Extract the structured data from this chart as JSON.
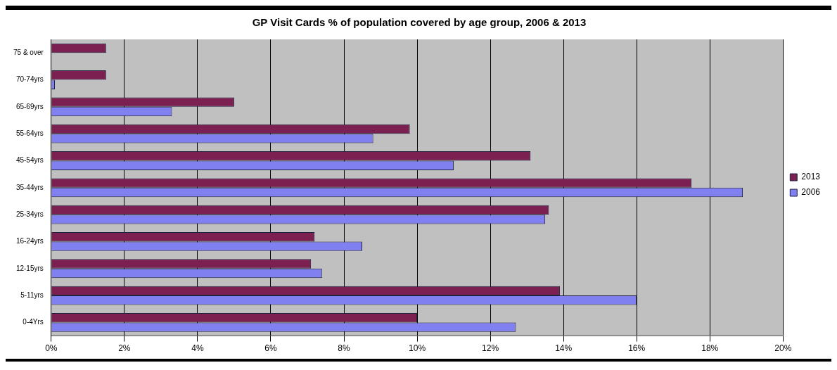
{
  "chart_data": {
    "type": "bar",
    "orientation": "horizontal",
    "title": "GP Visit Cards % of population covered by age group, 2006 & 2013",
    "categories": [
      "75 & over",
      "70-74yrs",
      "65-69yrs",
      "55-64yrs",
      "45-54yrs",
      "35-44yrs",
      "25-34yrs",
      "16-24yrs",
      "12-15yrs",
      "5-11yrs",
      "0-4Yrs"
    ],
    "series": [
      {
        "name": "2013",
        "color": "#7b2050",
        "values": [
          1.5,
          1.5,
          5,
          9.8,
          13.1,
          17.5,
          13.6,
          7.2,
          7.1,
          13.9,
          10
        ]
      },
      {
        "name": "2006",
        "color": "#8080f0",
        "values": [
          0,
          0.1,
          3.3,
          8.8,
          11,
          18.9,
          13.5,
          8.5,
          7.4,
          16,
          12.7
        ]
      }
    ],
    "xlim": [
      0,
      20
    ],
    "xticks": [
      {
        "value": 0,
        "label": "0%"
      },
      {
        "value": 2,
        "label": "2%"
      },
      {
        "value": 4,
        "label": "4%"
      },
      {
        "value": 6,
        "label": "6%"
      },
      {
        "value": 8,
        "label": "8%"
      },
      {
        "value": 10,
        "label": "10%"
      },
      {
        "value": 12,
        "label": "12%"
      },
      {
        "value": 14,
        "label": "14%"
      },
      {
        "value": 16,
        "label": "16%"
      },
      {
        "value": 18,
        "label": "18%"
      },
      {
        "value": 20,
        "label": "20%"
      }
    ],
    "grid": "x",
    "legend": "right"
  }
}
